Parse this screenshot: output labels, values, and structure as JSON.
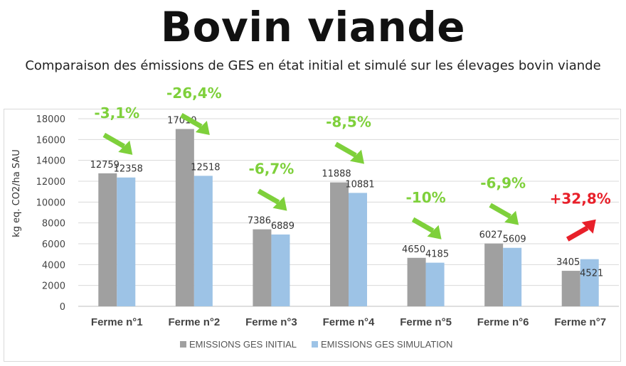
{
  "title": "Bovin viande",
  "subtitle": "Comparaison des émissions de GES en état initial et simulé sur les élevages bovin viande",
  "chart_data": {
    "type": "bar",
    "categories": [
      "Ferme n°1",
      "Ferme n°2",
      "Ferme n°3",
      "Ferme n°4",
      "Ferme n°5",
      "Ferme n°6",
      "Ferme n°7"
    ],
    "series": [
      {
        "name": "EMISSIONS GES INITIAL",
        "color": "#a0a0a0",
        "values": [
          12759,
          17010,
          7386,
          11888,
          4650,
          6027,
          3405
        ]
      },
      {
        "name": "EMISSIONS GES SIMULATION",
        "color": "#9dc3e6",
        "values": [
          12358,
          12518,
          6889,
          10881,
          4185,
          5609,
          4521
        ]
      }
    ],
    "annotations": [
      {
        "text": "-3,1%",
        "trend": "down",
        "color": "#7ed03b"
      },
      {
        "text": "-26,4%",
        "trend": "down",
        "color": "#7ed03b"
      },
      {
        "text": "-6,7%",
        "trend": "down",
        "color": "#7ed03b"
      },
      {
        "text": "-8,5%",
        "trend": "down",
        "color": "#7ed03b"
      },
      {
        "text": "-10%",
        "trend": "down",
        "color": "#7ed03b"
      },
      {
        "text": "-6,9%",
        "trend": "down",
        "color": "#7ed03b"
      },
      {
        "text": "+32,8%",
        "trend": "up",
        "color": "#e8202a"
      }
    ],
    "ylabel": "kg eq. CO2/ha SAU",
    "xlabel": "",
    "ylim": [
      0,
      18000
    ],
    "yticks": [
      0,
      2000,
      4000,
      6000,
      8000,
      10000,
      12000,
      14000,
      16000,
      18000
    ],
    "grid": true,
    "legend_position": "bottom"
  }
}
